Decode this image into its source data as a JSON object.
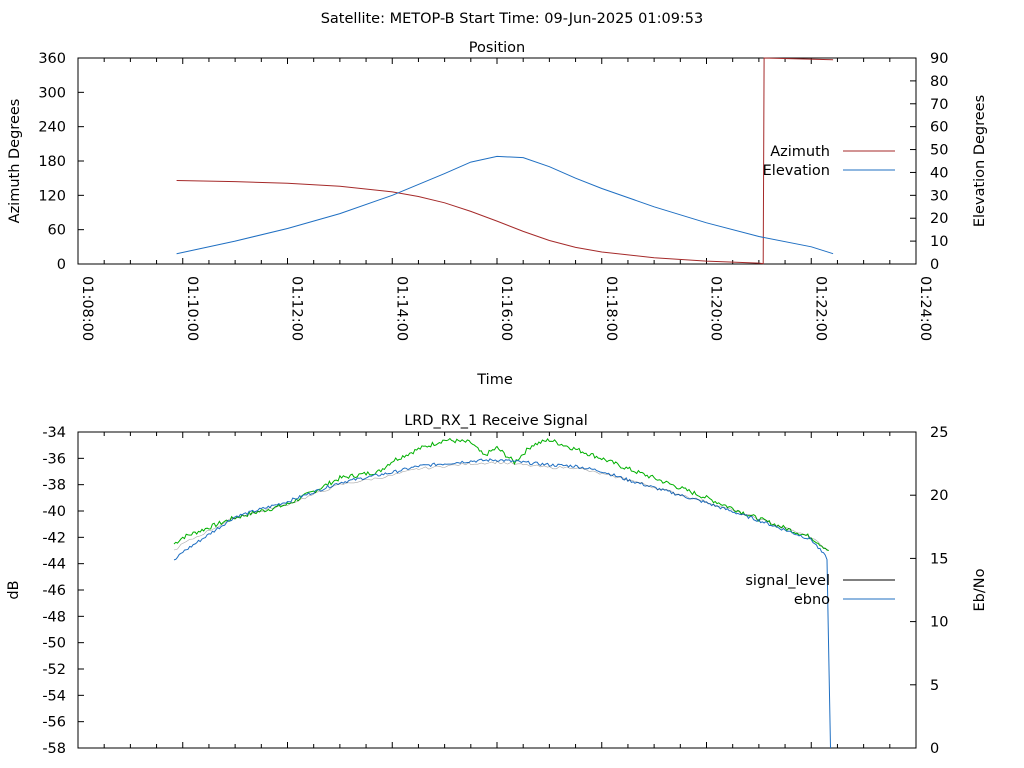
{
  "header": {
    "title": "Satellite: METOP-B    Start Time: 09-Jun-2025 01:09:53"
  },
  "colors": {
    "azimuth": "#a52a2a",
    "elevation": "#1f6fc2",
    "signal_level": "#000000",
    "ebno": "#1f6fc2",
    "green_trace": "#00b000"
  },
  "chart_data": [
    {
      "type": "line",
      "title": "Position",
      "xlabel": "Time",
      "ylabel": "Azimuth Degrees",
      "y2label": "Elevation Degrees",
      "xlim": [
        "01:08:00",
        "01:24:00"
      ],
      "x_ticks": [
        "01:08:00",
        "01:10:00",
        "01:12:00",
        "01:14:00",
        "01:16:00",
        "01:18:00",
        "01:20:00",
        "01:22:00",
        "01:24:00"
      ],
      "ylim": [
        0,
        360
      ],
      "y_ticks": [
        "0",
        "60",
        "120",
        "180",
        "240",
        "300",
        "360"
      ],
      "y2lim": [
        0,
        90
      ],
      "y2_ticks": [
        "0",
        "10",
        "20",
        "30",
        "40",
        "50",
        "60",
        "70",
        "80",
        "90"
      ],
      "grid": false,
      "legend_position": "right",
      "series": [
        {
          "name": "Azimuth",
          "axis": "left",
          "x": [
            "01:09:53",
            "01:11:00",
            "01:12:00",
            "01:13:00",
            "01:14:00",
            "01:14:30",
            "01:15:00",
            "01:15:30",
            "01:16:00",
            "01:16:30",
            "01:17:00",
            "01:17:30",
            "01:18:00",
            "01:19:00",
            "01:20:00",
            "01:21:00",
            "01:21:05",
            "01:21:06",
            "01:22:25"
          ],
          "values": [
            146,
            144,
            141,
            136,
            126,
            118,
            107,
            92,
            75,
            57,
            41,
            29,
            21,
            11,
            5,
            1.5,
            0.5,
            360,
            357
          ]
        },
        {
          "name": "Elevation",
          "axis": "right",
          "x": [
            "01:09:53",
            "01:11:00",
            "01:12:00",
            "01:13:00",
            "01:14:00",
            "01:15:00",
            "01:15:30",
            "01:16:00",
            "01:16:30",
            "01:17:00",
            "01:17:30",
            "01:18:00",
            "01:19:00",
            "01:20:00",
            "01:21:00",
            "01:22:00",
            "01:22:25"
          ],
          "values": [
            4.5,
            10,
            15.5,
            22,
            30,
            39.5,
            44.5,
            47,
            46.5,
            42.5,
            37.5,
            33,
            25,
            18,
            12,
            7.5,
            4.5
          ]
        }
      ]
    },
    {
      "type": "line",
      "title": "LRD_RX_1 Receive Signal",
      "xlabel": "",
      "ylabel": "dB",
      "y2label": "Eb/No",
      "xlim": [
        "01:08:00",
        "01:24:00"
      ],
      "ylim": [
        -58,
        -34
      ],
      "y_ticks": [
        "-34",
        "-36",
        "-38",
        "-40",
        "-42",
        "-44",
        "-46",
        "-48",
        "-50",
        "-52",
        "-54",
        "-56",
        "-58"
      ],
      "y2lim": [
        0,
        25
      ],
      "y2_ticks": [
        "0",
        "5",
        "10",
        "15",
        "20",
        "25"
      ],
      "grid": false,
      "legend_position": "right",
      "series": [
        {
          "name": "signal_level",
          "axis": "left",
          "x": [
            "01:09:50",
            "01:10:00",
            "01:11:00",
            "01:12:00",
            "01:13:00",
            "01:14:00",
            "01:14:30",
            "01:15:00",
            "01:15:30",
            "01:16:00",
            "01:16:30",
            "01:17:00",
            "01:17:30",
            "01:18:00",
            "01:18:30",
            "01:19:00",
            "01:20:00",
            "01:21:00",
            "01:22:00",
            "01:22:20"
          ],
          "values": [
            -43,
            -42.5,
            -40.5,
            -39.5,
            -38,
            -37.3,
            -36.8,
            -36.6,
            -36.4,
            -36.3,
            -36.5,
            -36.7,
            -36.7,
            -37.2,
            -37.6,
            -38.2,
            -39.3,
            -40.6,
            -42,
            -43
          ]
        },
        {
          "name": "ebno",
          "axis": "right",
          "x": [
            "01:09:50",
            "01:10:00",
            "01:11:00",
            "01:12:00",
            "01:13:00",
            "01:14:00",
            "01:14:30",
            "01:15:00",
            "01:15:30",
            "01:16:00",
            "01:16:30",
            "01:17:00",
            "01:17:30",
            "01:18:00",
            "01:18:30",
            "01:19:00",
            "01:20:00",
            "01:21:00",
            "01:22:00",
            "01:22:18",
            "01:22:22"
          ],
          "values": [
            14.8,
            15.5,
            18.3,
            19.5,
            21.0,
            21.8,
            22.3,
            22.5,
            22.7,
            22.8,
            22.6,
            22.4,
            22.3,
            21.9,
            21.2,
            20.6,
            19.4,
            18.0,
            16.5,
            15.0,
            0
          ]
        }
      ],
      "unlabeled_trace": {
        "axis": "left",
        "x": [
          "01:09:50",
          "01:10:00",
          "01:11:00",
          "01:12:00",
          "01:13:00",
          "01:13:45",
          "01:14:00",
          "01:14:30",
          "01:15:00",
          "01:15:30",
          "01:15:45",
          "01:16:00",
          "01:16:20",
          "01:16:40",
          "01:17:00",
          "01:17:30",
          "01:18:00",
          "01:18:30",
          "01:19:00",
          "01:20:00",
          "01:21:00",
          "01:22:00",
          "01:22:20"
        ],
        "values": [
          -42.5,
          -42,
          -40.5,
          -39.5,
          -37.5,
          -37,
          -36.2,
          -35.3,
          -34.6,
          -34.8,
          -35.8,
          -35.2,
          -36.3,
          -35,
          -34.6,
          -35.3,
          -36,
          -36.8,
          -37.5,
          -39,
          -40.6,
          -42,
          -43
        ]
      }
    }
  ]
}
